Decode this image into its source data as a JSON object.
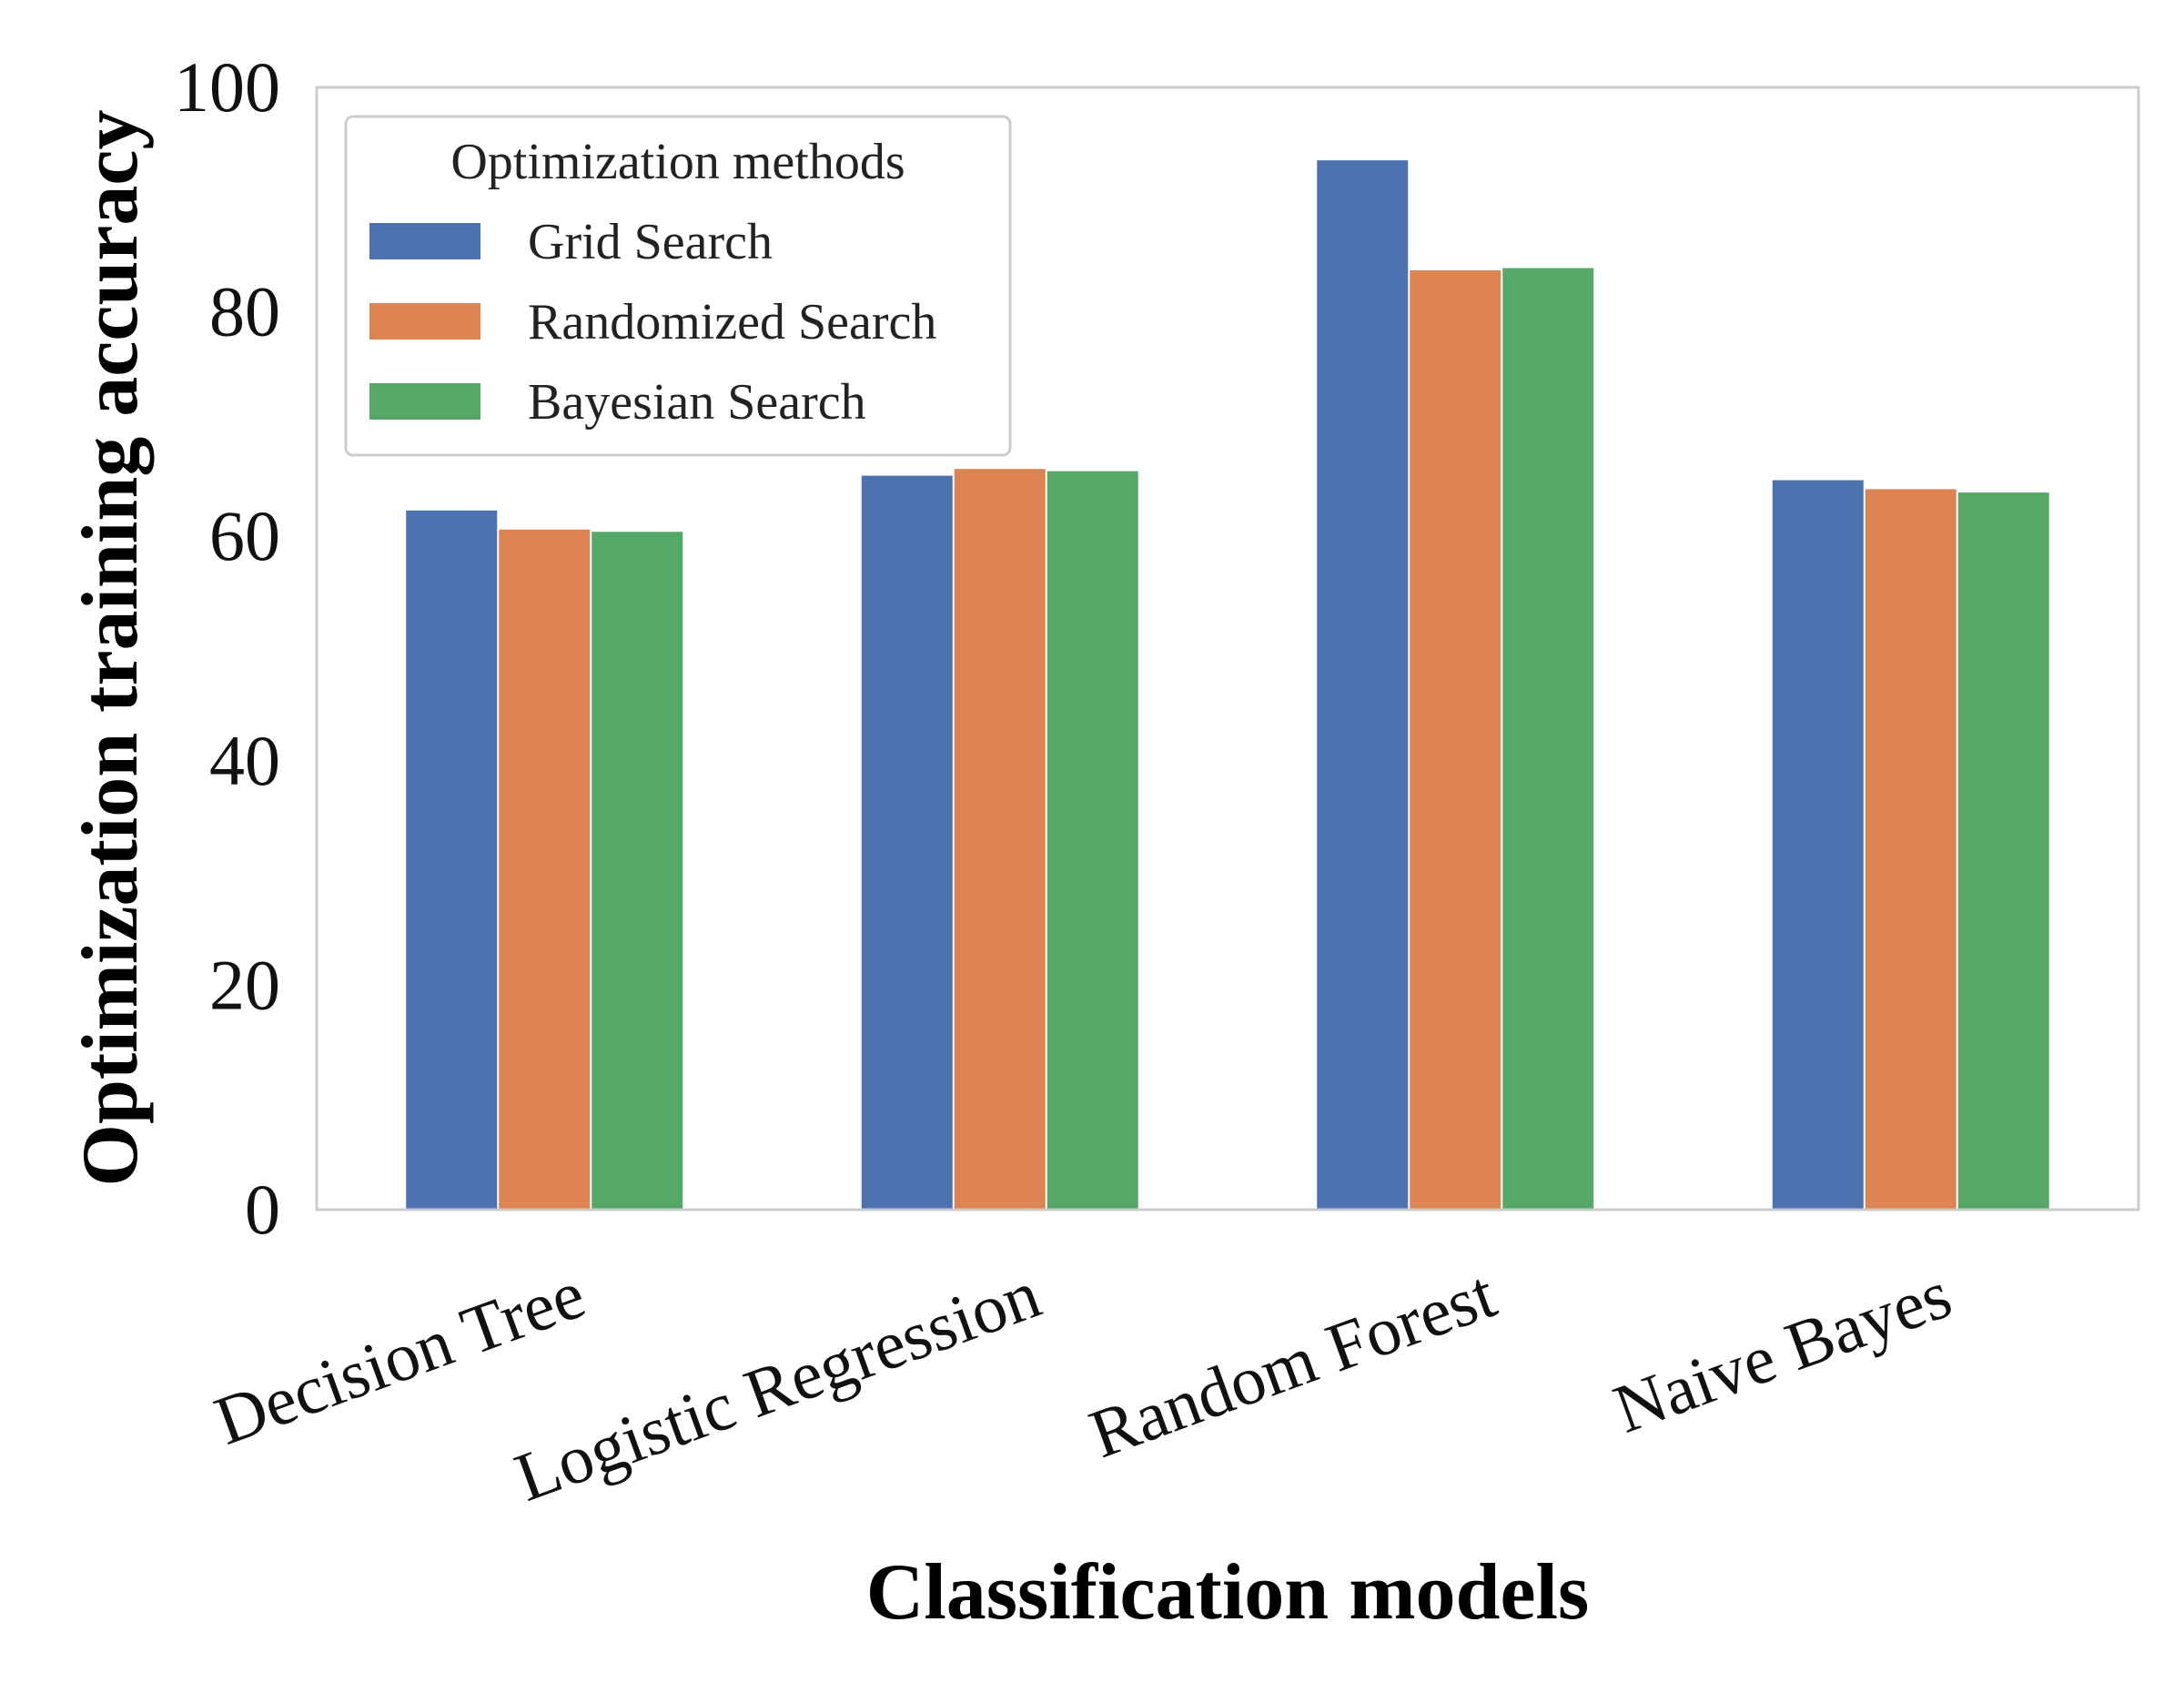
{
  "chart_data": {
    "type": "bar",
    "xlabel": "Classification models",
    "ylabel": "Optimization training accuracy",
    "ylim": [
      0,
      100
    ],
    "yticks": [
      0,
      20,
      40,
      60,
      80,
      100
    ],
    "categories": [
      "Decision Tree",
      "Logistic Regression",
      "Random Forest",
      "Naive Bayes"
    ],
    "series": [
      {
        "name": "Grid Search",
        "color": "#4c72b0",
        "values": [
          62.3,
          65.4,
          93.5,
          65.0
        ]
      },
      {
        "name": "Randomized Search",
        "color": "#dd8452",
        "values": [
          60.6,
          66.0,
          83.7,
          64.2
        ]
      },
      {
        "name": "Bayesian Search",
        "color": "#55a868",
        "values": [
          60.4,
          65.8,
          83.9,
          63.9
        ]
      }
    ],
    "legend": {
      "title": "Optimization methods",
      "position": "top-left"
    },
    "grid": false
  }
}
